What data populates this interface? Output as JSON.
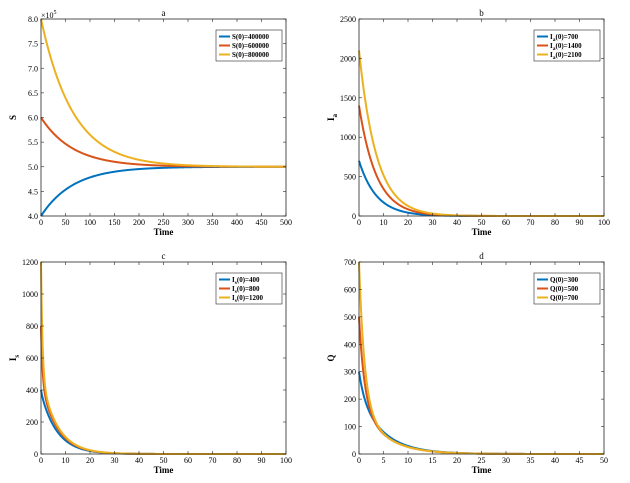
{
  "chart_data": [
    {
      "type": "line",
      "title": "a",
      "xlabel": "Time",
      "ylabel": "S",
      "xlim": [
        0,
        500
      ],
      "ylim": [
        400000,
        800000
      ],
      "xticks": [
        0,
        50,
        100,
        150,
        200,
        250,
        300,
        350,
        400,
        450,
        500
      ],
      "yticks": [
        4,
        4.5,
        5,
        5.5,
        6,
        6.5,
        7,
        7.5,
        8
      ],
      "yscale": 100000,
      "y_exponent_label": "×10",
      "y_exponent_power": "5",
      "x_label_decimals": 0,
      "y_label_decimals": 1,
      "grid": false,
      "legend_position": "top-right",
      "equilibrium": 500000,
      "rate": 0.0153,
      "series": [
        {
          "name": "S(0)=400000",
          "initial": 400000,
          "color": "#0072BD"
        },
        {
          "name": "S(0)=600000",
          "initial": 600000,
          "color": "#D95319"
        },
        {
          "name": "S(0)=800000",
          "initial": 800000,
          "color": "#EDB120"
        }
      ]
    },
    {
      "type": "line",
      "title": "b",
      "xlabel": "Time",
      "ylabel": "I",
      "ylabel_sub": "a",
      "xlim": [
        0,
        100
      ],
      "ylim": [
        0,
        2500
      ],
      "xticks": [
        0,
        10,
        20,
        30,
        40,
        50,
        60,
        70,
        80,
        90,
        100
      ],
      "yticks": [
        0,
        500,
        1000,
        1500,
        2000,
        2500
      ],
      "x_label_decimals": 0,
      "y_label_decimals": 0,
      "grid": false,
      "legend_position": "top-right",
      "equilibrium": 0,
      "rate": 0.14,
      "series": [
        {
          "name": "I",
          "name_sub": "a",
          "name_rest": "(0)=700",
          "initial": 700,
          "color": "#0072BD"
        },
        {
          "name": "I",
          "name_sub": "a",
          "name_rest": "(0)=1400",
          "initial": 1400,
          "color": "#D95319"
        },
        {
          "name": "I",
          "name_sub": "a",
          "name_rest": "(0)=2100",
          "initial": 2100,
          "color": "#EDB120"
        }
      ]
    },
    {
      "type": "line",
      "title": "c",
      "xlabel": "Time",
      "ylabel": "I",
      "ylabel_sub": "s",
      "xlim": [
        0,
        100
      ],
      "ylim": [
        0,
        1200
      ],
      "xticks": [
        0,
        10,
        20,
        30,
        40,
        50,
        60,
        70,
        80,
        90,
        100
      ],
      "yticks": [
        0,
        200,
        400,
        600,
        800,
        1000,
        1200
      ],
      "x_label_decimals": 0,
      "y_label_decimals": 0,
      "grid": false,
      "legend_position": "top-right",
      "equilibrium": 0,
      "rate": 0.15,
      "fast_rate": 1.6,
      "fast_weight": [
        0.05,
        0.45,
        0.6
      ],
      "series": [
        {
          "name": "I",
          "name_sub": "s",
          "name_rest": "(0)=400",
          "initial": 400,
          "color": "#0072BD"
        },
        {
          "name": "I",
          "name_sub": "s",
          "name_rest": "(0)=800",
          "initial": 800,
          "color": "#D95319"
        },
        {
          "name": "I",
          "name_sub": "s",
          "name_rest": "(0)=1200",
          "initial": 1200,
          "color": "#EDB120"
        }
      ]
    },
    {
      "type": "line",
      "title": "d",
      "xlabel": "Time",
      "ylabel": "Q",
      "xlim": [
        0,
        50
      ],
      "ylim": [
        0,
        700
      ],
      "xticks": [
        0,
        5,
        10,
        15,
        20,
        25,
        30,
        35,
        40,
        45,
        50
      ],
      "yticks": [
        0,
        100,
        200,
        300,
        400,
        500,
        600,
        700
      ],
      "x_label_decimals": 0,
      "y_label_decimals": 0,
      "grid": false,
      "legend_position": "top-right",
      "equilibrium": 0,
      "rate": 0.2,
      "fast_rate": 0.9,
      "fast_weight": [
        0.28,
        0.62,
        0.73
      ],
      "series": [
        {
          "name": "Q(0)=300",
          "initial": 300,
          "color": "#0072BD"
        },
        {
          "name": "Q(0)=500",
          "initial": 500,
          "color": "#D95319"
        },
        {
          "name": "Q(0)=700",
          "initial": 700,
          "color": "#EDB120"
        }
      ]
    }
  ]
}
